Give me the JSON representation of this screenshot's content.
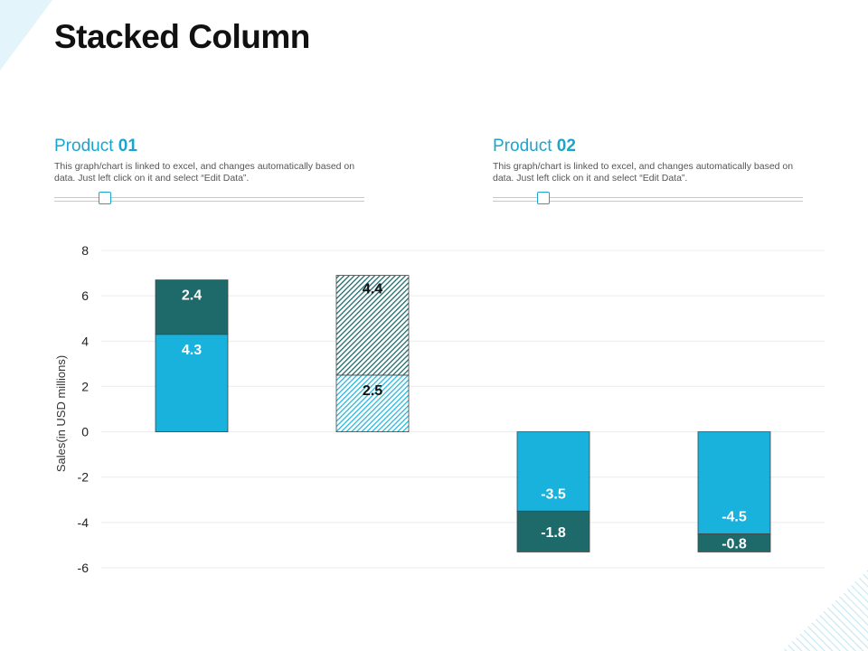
{
  "page": {
    "title": "Stacked Column"
  },
  "products": [
    {
      "label": "Product",
      "number": "01",
      "description": "This graph/chart is linked to excel, and changes automatically based on data. Just left click on it and select “Edit Data”."
    },
    {
      "label": "Product",
      "number": "02",
      "description": "This graph/chart is linked to excel, and changes automatically based on data. Just left click on it and select “Edit Data”."
    }
  ],
  "colors": {
    "accent": "#1aa5cc",
    "series1": "#18b2dd",
    "series2": "#1e6a6a",
    "deco": "#d7f0f8"
  },
  "chart_data": {
    "type": "bar",
    "stacked": true,
    "ylabel": "Sales(in USD millions)",
    "ylim": [
      -6,
      8
    ],
    "yticks": [
      8,
      6,
      4,
      2,
      0,
      -2,
      -4,
      -6
    ],
    "grid": true,
    "categories": [
      "",
      "",
      "",
      ""
    ],
    "series": [
      {
        "values": [
          4.3,
          2.5,
          -3.5,
          -4.5
        ],
        "color": "#18b2dd",
        "patterns": [
          "solid",
          "hatched",
          "solid",
          "solid"
        ]
      },
      {
        "values": [
          2.4,
          4.4,
          -1.8,
          -0.8
        ],
        "color": "#1e6a6a",
        "patterns": [
          "solid",
          "hatched",
          "solid",
          "solid"
        ]
      }
    ]
  }
}
